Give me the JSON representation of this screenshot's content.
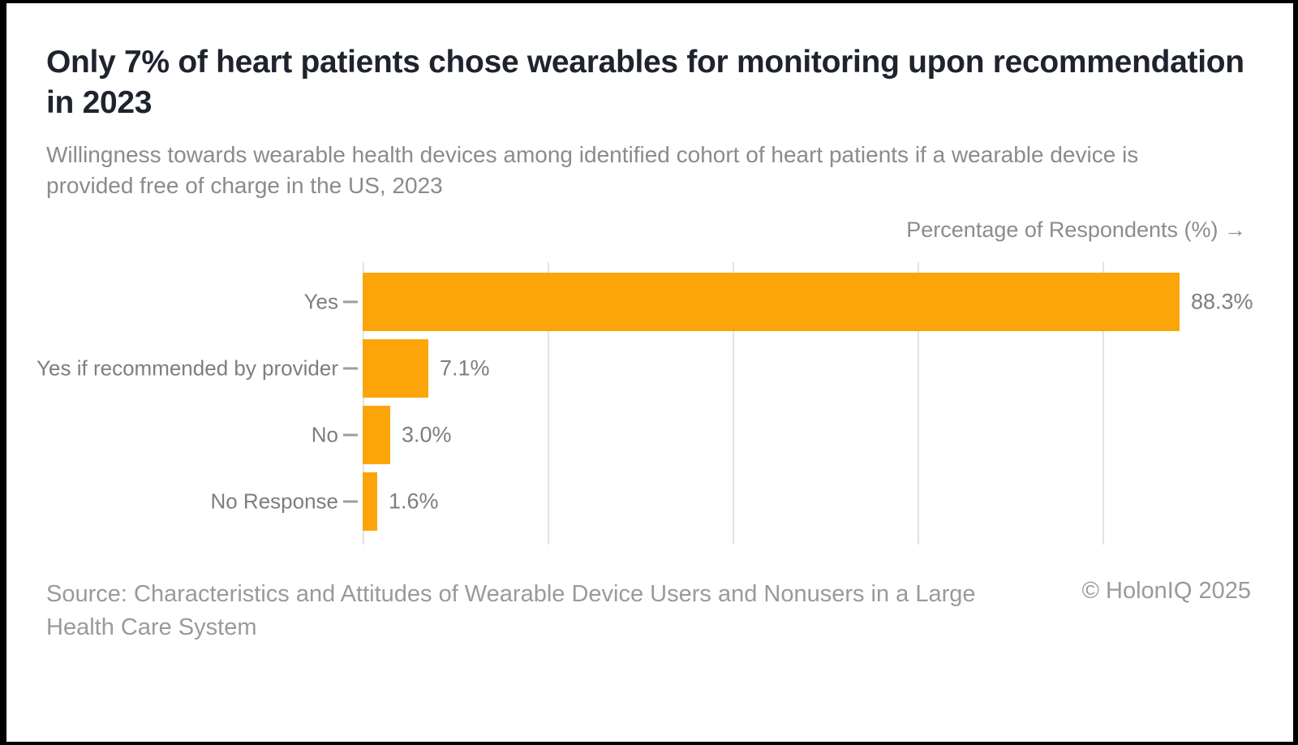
{
  "header": {
    "title": "Only 7% of heart patients chose wearables for monitoring upon recommendation in 2023",
    "subtitle": "Willingness towards wearable health devices among identified cohort of heart patients if a wearable device is provided free of charge in the US, 2023"
  },
  "chart_data": {
    "type": "bar",
    "orientation": "horizontal",
    "categories": [
      "Yes",
      "Yes if recommended by provider",
      "No",
      "No Response"
    ],
    "values": [
      88.3,
      7.1,
      3.0,
      1.6
    ],
    "value_labels": [
      "88.3%",
      "7.1%",
      "3.0%",
      "1.6%"
    ],
    "xlabel": "Percentage of Respondents (%) →",
    "xlim": [
      0,
      100
    ],
    "xticks": [
      0,
      20,
      40,
      60,
      80
    ],
    "grid": "vertical",
    "legend": "none",
    "bar_color": "#FCA50A",
    "gridline_color": "#e3e3e3",
    "tick_color": "#9e9e9e",
    "label_color": "#7e7e7e"
  },
  "footer": {
    "source": "Source: Characteristics and Attitudes of Wearable Device Users and Nonusers in a Large Health Care System",
    "copyright": "© HolonIQ 2025"
  }
}
